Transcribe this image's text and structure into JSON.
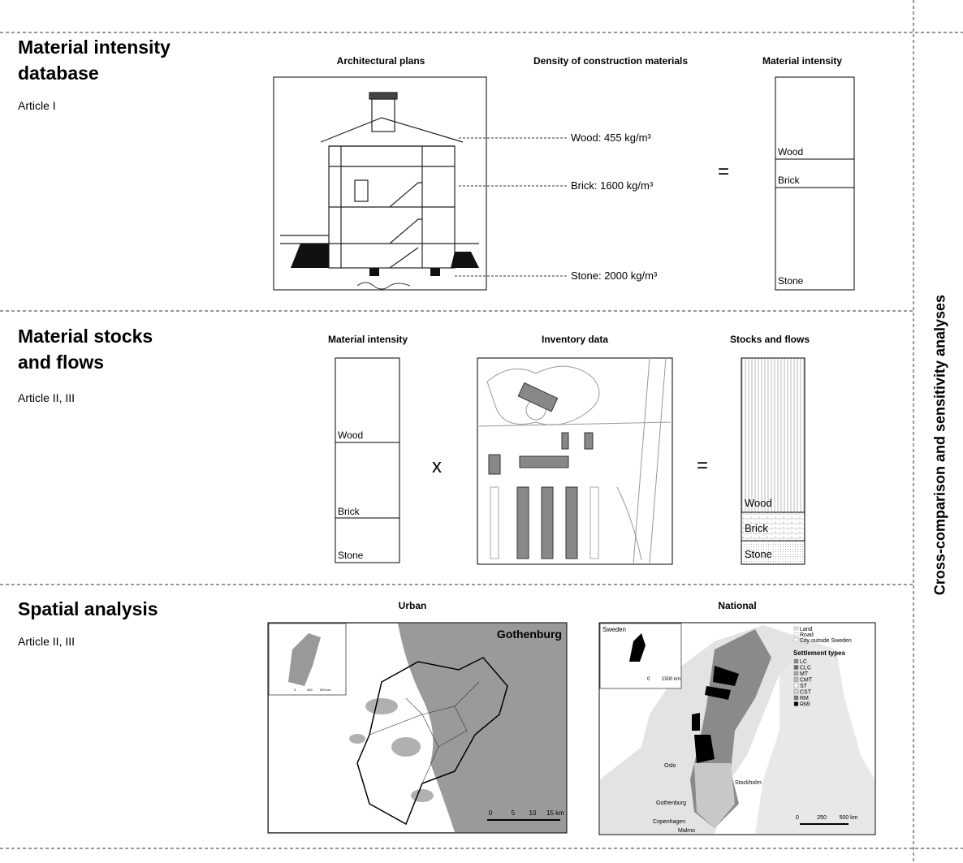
{
  "sections": [
    {
      "title": "Material intensity database",
      "subtitle": "Article I",
      "panel_titles": [
        "Architectural plans",
        "Density of construction materials",
        "Material intensity"
      ],
      "densities": [
        "Wood: 455 kg/m³",
        "Brick: 1600 kg/m³",
        "Stone: 2000 kg/m³"
      ],
      "operator": "=",
      "layers": [
        "Wood",
        "Brick",
        "Stone"
      ]
    },
    {
      "title": "Material stocks and flows",
      "subtitle": "Article II, III",
      "panel_titles": [
        "Material intensity",
        "Inventory data",
        "Stocks and flows"
      ],
      "operators": [
        "x",
        "="
      ],
      "intensity_layers": [
        "Wood",
        "Brick",
        "Stone"
      ],
      "stock_layers": [
        "Wood",
        "Brick",
        "Stone"
      ]
    },
    {
      "title": "Spatial analysis",
      "subtitle": "Article II, III",
      "panel_titles": [
        "Urban",
        "National"
      ],
      "urban_map": {
        "city": "Gothenburg",
        "inset_scale": [
          "0",
          "250",
          "500 km"
        ],
        "scale": [
          "0",
          "5",
          "10",
          "15 km"
        ]
      },
      "national_map": {
        "inset": "Sweden",
        "inset_scale": [
          "0",
          "1500 km"
        ],
        "legend": [
          "Land",
          "Road",
          "City outside Sweden"
        ],
        "legend_title": "Settlement types",
        "settlement_types": [
          {
            "name": "LC",
            "color": "#8a8a8a"
          },
          {
            "name": "CLC",
            "color": "#6e6e6e"
          },
          {
            "name": "MT",
            "color": "#a8a8a8"
          },
          {
            "name": "CMT",
            "color": "#bdbdbd"
          },
          {
            "name": "ST",
            "color": "#ffffff"
          },
          {
            "name": "CST",
            "color": "#d6d6d6"
          },
          {
            "name": "RM",
            "color": "#7a7a7a"
          },
          {
            "name": "RMI",
            "color": "#000000"
          }
        ],
        "cities": [
          "Oslo",
          "Stockholm",
          "Gothenburg",
          "Copenhagen",
          "Malmo"
        ],
        "scale": [
          "0",
          "250",
          "500 km"
        ]
      }
    }
  ],
  "side_label": "Cross-comparison and sensitivity analyses"
}
